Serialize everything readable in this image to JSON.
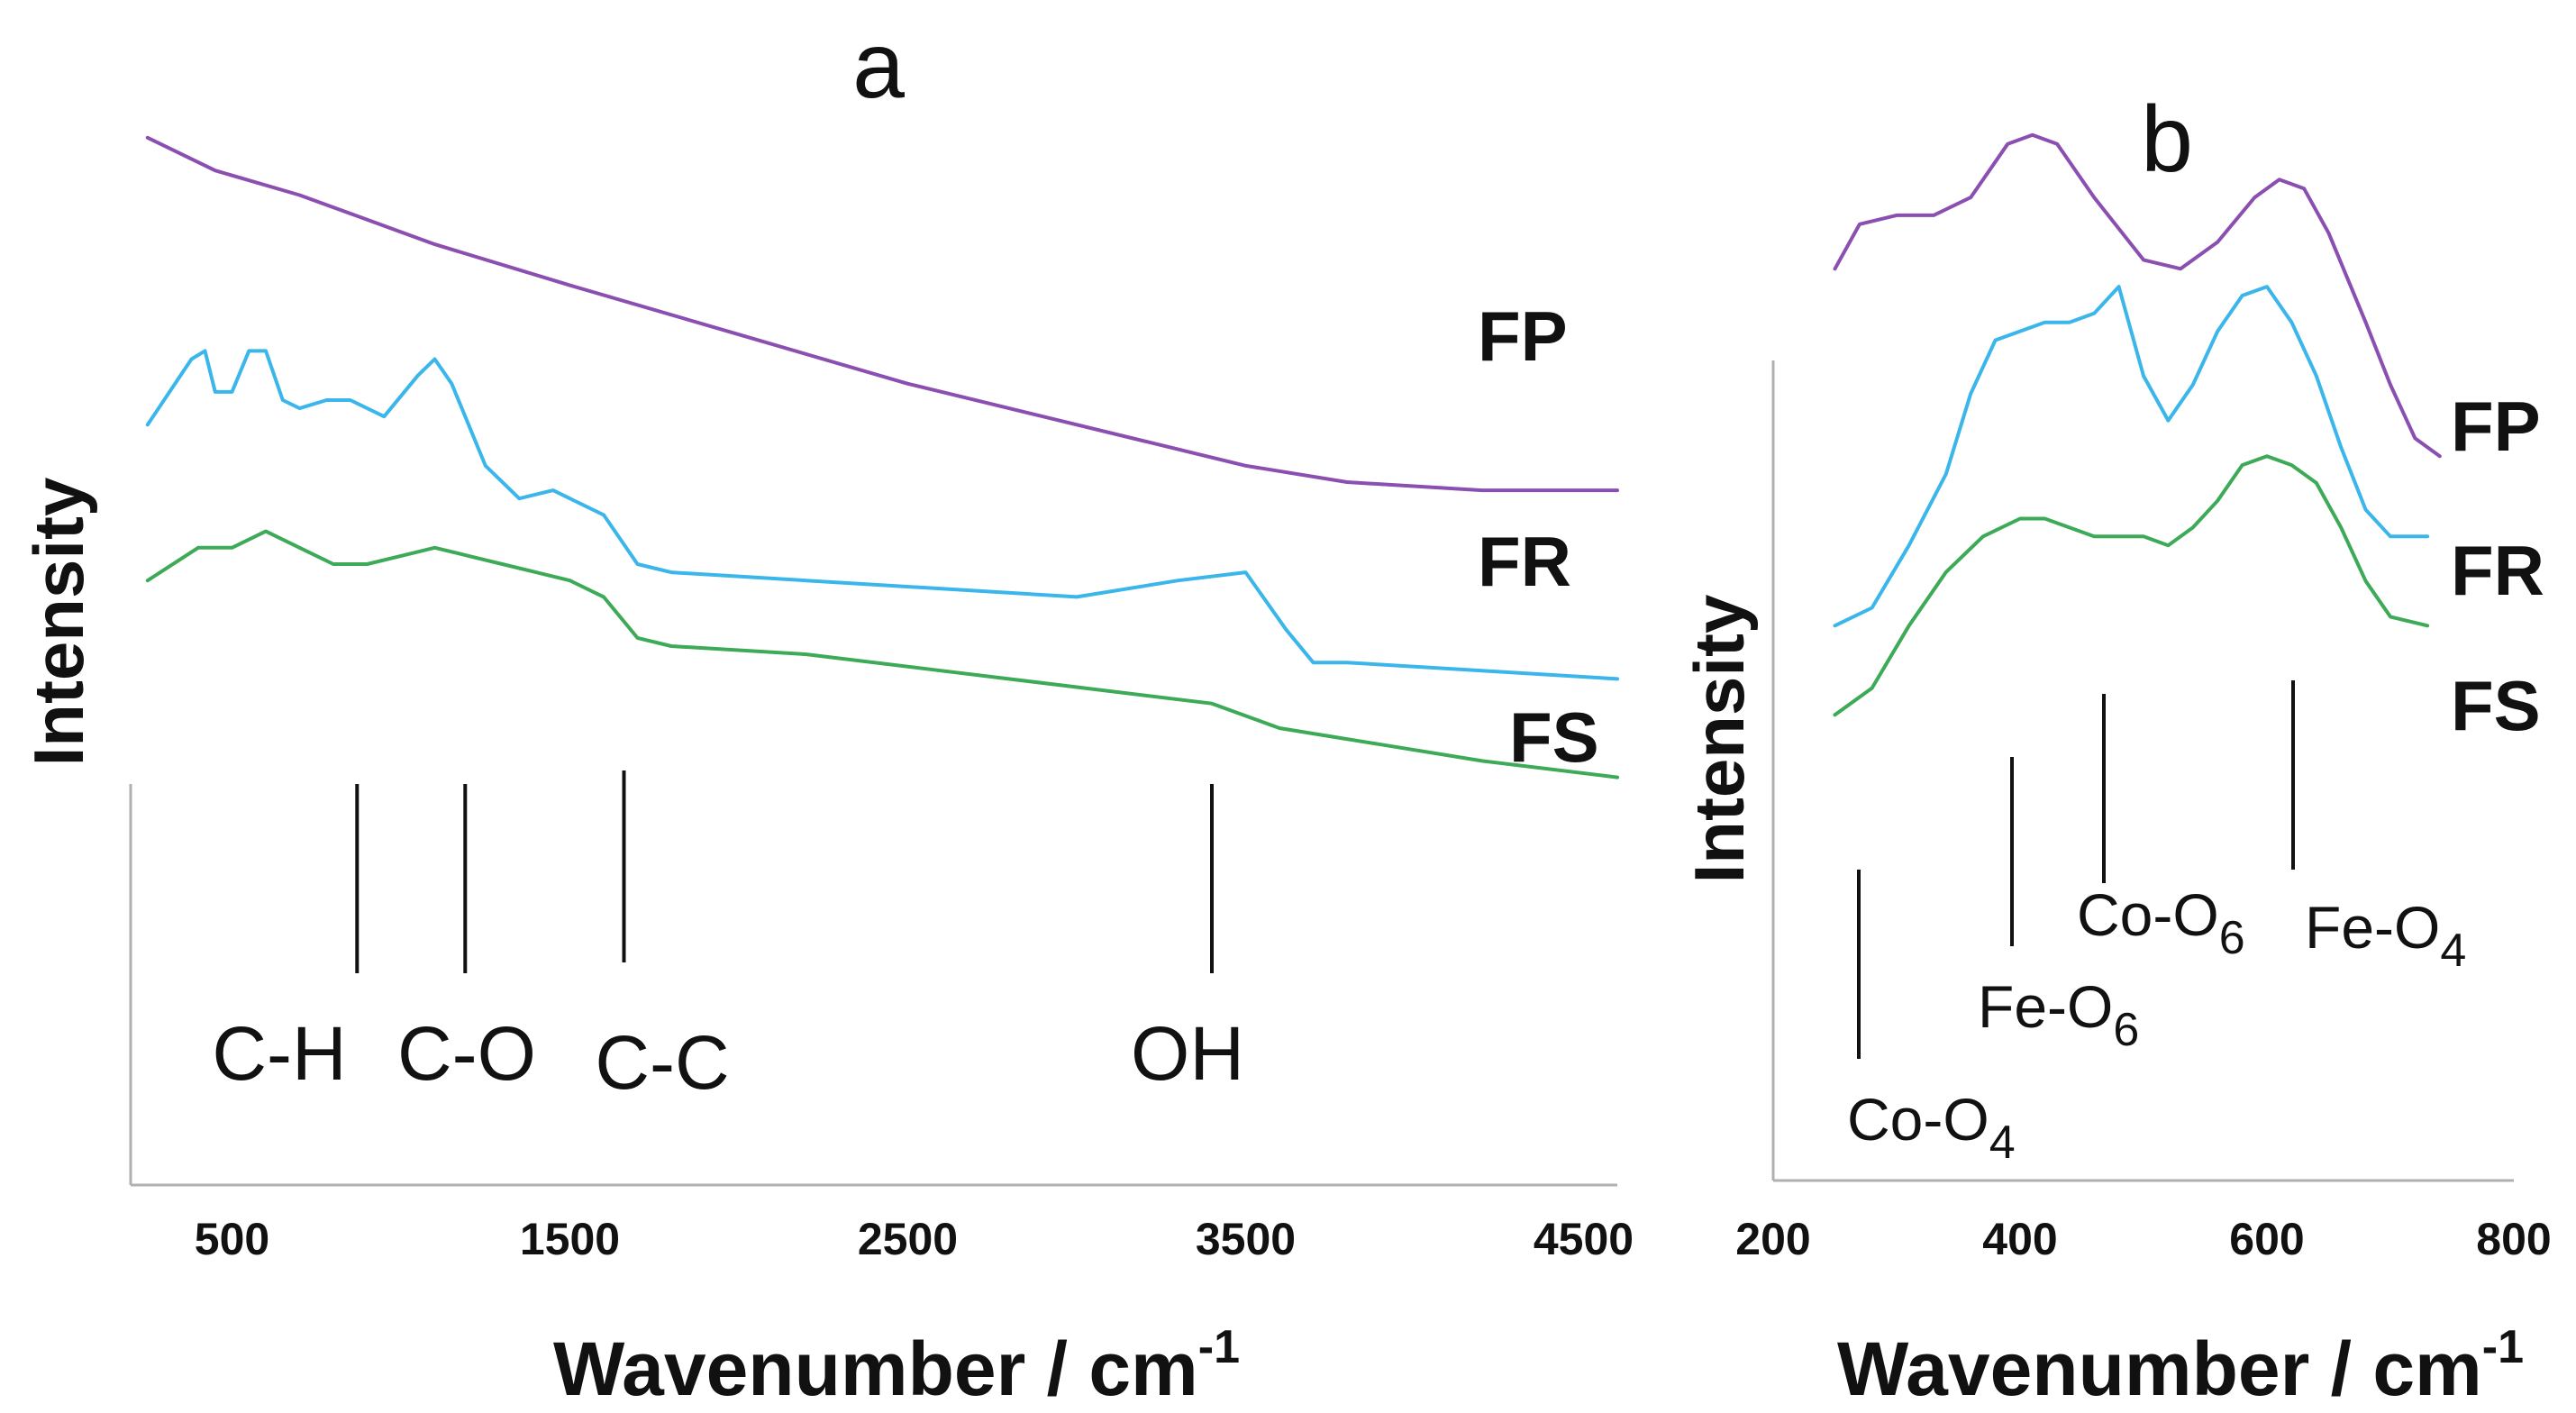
{
  "colors": {
    "FP": "#8a4fb0",
    "FR": "#3bb6ea",
    "FS": "#3daa57"
  },
  "chart_data": [
    {
      "panel": "a",
      "type": "line",
      "title": "a",
      "xlabel": "Wavenumber / cm",
      "xlabel_sup": "-1",
      "ylabel": "Intensity",
      "xlim": [
        200,
        4600
      ],
      "ylim": [
        0,
        100
      ],
      "xticks": [
        500,
        1500,
        2500,
        3500,
        4500
      ],
      "series": [
        {
          "name": "FP",
          "x": [
            250,
            450,
            700,
            900,
            1100,
            1500,
            2000,
            2500,
            2900,
            3200,
            3500,
            3800,
            4200,
            4600
          ],
          "y": [
            92,
            88,
            85,
            82,
            79,
            74,
            68,
            62,
            58,
            55,
            52,
            50,
            49,
            49
          ]
        },
        {
          "name": "FR",
          "x": [
            250,
            380,
            420,
            450,
            500,
            550,
            600,
            650,
            700,
            780,
            850,
            950,
            1050,
            1100,
            1150,
            1250,
            1350,
            1450,
            1500,
            1600,
            1700,
            1800,
            2200,
            2600,
            3000,
            3300,
            3500,
            3620,
            3700,
            3800,
            4200,
            4600
          ],
          "y": [
            57,
            65,
            66,
            61,
            61,
            66,
            66,
            60,
            59,
            60,
            60,
            58,
            63,
            65,
            62,
            52,
            48,
            49,
            48,
            46,
            40,
            39,
            38,
            37,
            36,
            38,
            39,
            32,
            28,
            28,
            27,
            26
          ]
        },
        {
          "name": "FS",
          "x": [
            250,
            400,
            500,
            600,
            700,
            800,
            900,
            1000,
            1100,
            1200,
            1300,
            1400,
            1500,
            1600,
            1700,
            1800,
            2200,
            2600,
            3000,
            3400,
            3600,
            3750,
            3900,
            4200,
            4600
          ],
          "y": [
            38,
            42,
            42,
            44,
            42,
            40,
            40,
            41,
            42,
            41,
            40,
            39,
            38,
            36,
            31,
            30,
            29,
            27,
            25,
            23,
            20,
            19,
            18,
            16,
            14
          ]
        }
      ],
      "series_labels": [
        "FP",
        "FR",
        "FS"
      ],
      "bands": [
        {
          "label": "C-H",
          "x": 870
        },
        {
          "label": "C-O",
          "x": 1190
        },
        {
          "label": "C-C",
          "x": 1660
        },
        {
          "label": "OH",
          "x": 3400
        }
      ]
    },
    {
      "panel": "b",
      "type": "line",
      "title": "b",
      "xlabel": "Wavenumber / cm",
      "xlabel_sup": "-1",
      "ylabel": "Intensity",
      "xlim": [
        200,
        800
      ],
      "ylim": [
        0,
        100
      ],
      "xticks": [
        200,
        400,
        600,
        800
      ],
      "series": [
        {
          "name": "FP",
          "x": [
            250,
            270,
            300,
            330,
            360,
            390,
            410,
            430,
            460,
            500,
            530,
            560,
            590,
            610,
            630,
            650,
            680,
            700,
            720,
            740
          ],
          "y": [
            83,
            88,
            89,
            89,
            91,
            97,
            98,
            97,
            91,
            84,
            83,
            86,
            91,
            93,
            92,
            87,
            77,
            70,
            64,
            62
          ]
        },
        {
          "name": "FR",
          "x": [
            250,
            280,
            310,
            340,
            360,
            380,
            400,
            420,
            440,
            460,
            480,
            500,
            520,
            540,
            560,
            580,
            600,
            620,
            640,
            660,
            680,
            700,
            730
          ],
          "y": [
            43,
            45,
            52,
            60,
            69,
            75,
            76,
            77,
            77,
            78,
            81,
            71,
            66,
            70,
            76,
            80,
            81,
            77,
            71,
            63,
            56,
            53,
            53
          ]
        },
        {
          "name": "FS",
          "x": [
            250,
            280,
            310,
            340,
            370,
            400,
            420,
            440,
            460,
            480,
            500,
            520,
            540,
            560,
            580,
            600,
            620,
            640,
            660,
            680,
            700,
            730
          ],
          "y": [
            33,
            36,
            43,
            49,
            53,
            55,
            55,
            54,
            53,
            53,
            53,
            52,
            54,
            57,
            61,
            62,
            61,
            59,
            54,
            48,
            44,
            43
          ]
        }
      ],
      "series_labels": [
        "FP",
        "FR",
        "FS"
      ],
      "bands": [
        {
          "label": "Co-O",
          "sub": "4",
          "x": 290
        },
        {
          "label": "Fe-O",
          "sub": "6",
          "x": 400
        },
        {
          "label": "Co-O",
          "sub": "6",
          "x": 475
        },
        {
          "label": "Fe-O",
          "sub": "4",
          "x": 625
        }
      ]
    }
  ]
}
